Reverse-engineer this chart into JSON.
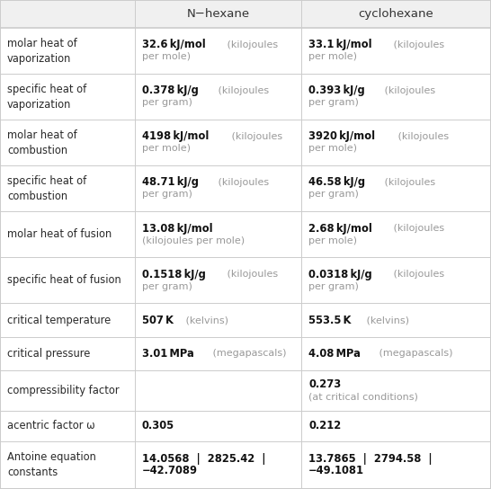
{
  "headers": [
    "",
    "N−hexane",
    "cyclohexane"
  ],
  "rows": [
    {
      "label": "molar heat of\nvaporization",
      "col1": {
        "line1_bold": "32.6 kJ/mol",
        "line1_light": " (kilojoules",
        "line2": "per mole)"
      },
      "col2": {
        "line1_bold": "33.1 kJ/mol",
        "line1_light": " (kilojoules",
        "line2": "per mole)"
      }
    },
    {
      "label": "specific heat of\nvaporization",
      "col1": {
        "line1_bold": "0.378 kJ/g",
        "line1_light": " (kilojoules",
        "line2": "per gram)"
      },
      "col2": {
        "line1_bold": "0.393 kJ/g",
        "line1_light": " (kilojoules",
        "line2": "per gram)"
      }
    },
    {
      "label": "molar heat of\ncombustion",
      "col1": {
        "line1_bold": "4198 kJ/mol",
        "line1_light": " (kilojoules",
        "line2": "per mole)"
      },
      "col2": {
        "line1_bold": "3920 kJ/mol",
        "line1_light": " (kilojoules",
        "line2": "per mole)"
      }
    },
    {
      "label": "specific heat of\ncombustion",
      "col1": {
        "line1_bold": "48.71 kJ/g",
        "line1_light": " (kilojoules",
        "line2": "per gram)"
      },
      "col2": {
        "line1_bold": "46.58 kJ/g",
        "line1_light": " (kilojoules",
        "line2": "per gram)"
      }
    },
    {
      "label": "molar heat of fusion",
      "col1": {
        "line1_bold": "13.08 kJ/mol",
        "line1_light": "",
        "line2": "(kilojoules per mole)"
      },
      "col2": {
        "line1_bold": "2.68 kJ/mol",
        "line1_light": " (kilojoules",
        "line2": "per mole)"
      }
    },
    {
      "label": "specific heat of fusion",
      "col1": {
        "line1_bold": "0.1518 kJ/g",
        "line1_light": " (kilojoules",
        "line2": "per gram)"
      },
      "col2": {
        "line1_bold": "0.0318 kJ/g",
        "line1_light": " (kilojoules",
        "line2": "per gram)"
      }
    },
    {
      "label": "critical temperature",
      "col1": {
        "line1_bold": "507 K",
        "line1_light": " (kelvins)",
        "line2": ""
      },
      "col2": {
        "line1_bold": "553.5 K",
        "line1_light": " (kelvins)",
        "line2": ""
      }
    },
    {
      "label": "critical pressure",
      "col1": {
        "line1_bold": "3.01 MPa",
        "line1_light": " (megapascals)",
        "line2": ""
      },
      "col2": {
        "line1_bold": "4.08 MPa",
        "line1_light": " (megapascals)",
        "line2": ""
      }
    },
    {
      "label": "compressibility factor",
      "col1": {
        "line1_bold": "",
        "line1_light": "",
        "line2": ""
      },
      "col2": {
        "line1_bold": "0.273",
        "line1_light": "",
        "line2": "(at critical conditions)"
      }
    },
    {
      "label": "acentric factor ω",
      "col1": {
        "line1_bold": "0.305",
        "line1_light": "",
        "line2": ""
      },
      "col2": {
        "line1_bold": "0.212",
        "line1_light": "",
        "line2": ""
      }
    },
    {
      "label": "Antoine equation\nconstants",
      "col1": {
        "line1_bold": "14.0568  |  2825.42  |",
        "line1_light": "",
        "line2_bold": "−42.7089"
      },
      "col2": {
        "line1_bold": "13.7865  |  2794.58  |",
        "line1_light": "",
        "line2_bold": "−49.1081"
      }
    }
  ],
  "background_color": "#ffffff",
  "header_bg": "#f0f0f0",
  "border_color": "#cccccc",
  "label_color": "#2a2a2a",
  "bold_color": "#111111",
  "light_color": "#999999",
  "header_color": "#333333"
}
